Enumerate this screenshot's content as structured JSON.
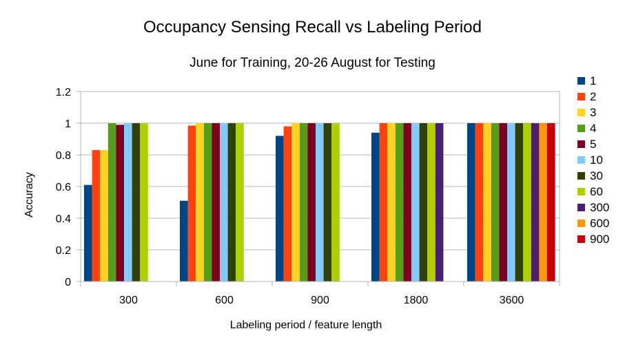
{
  "chart_data": {
    "type": "bar",
    "title": "Occupancy Sensing Recall vs Labeling Period",
    "subtitle": "June for Training, 20-26 August for Testing",
    "xlabel": "Labeling period / feature length",
    "ylabel": "Accuracy",
    "ylim": [
      0,
      1.2
    ],
    "yticks": [
      "0",
      "0.2",
      "0.4",
      "0.6",
      "0.8",
      "1",
      "1.2"
    ],
    "grid": true,
    "legend_position": "right",
    "categories": [
      "300",
      "600",
      "900",
      "1800",
      "3600"
    ],
    "series": [
      {
        "name": "1",
        "color": "#004586",
        "values": [
          0.61,
          0.51,
          0.92,
          0.94,
          1
        ]
      },
      {
        "name": "2",
        "color": "#ff420e",
        "values": [
          0.83,
          0.985,
          0.98,
          1,
          1
        ]
      },
      {
        "name": "3",
        "color": "#ffd320",
        "values": [
          0.83,
          1,
          1,
          1,
          1
        ]
      },
      {
        "name": "4",
        "color": "#579d1c",
        "values": [
          1,
          1,
          1,
          1,
          1
        ]
      },
      {
        "name": "5",
        "color": "#7e0021",
        "values": [
          0.99,
          1,
          1,
          1,
          1
        ]
      },
      {
        "name": "10",
        "color": "#83caff",
        "values": [
          1,
          1,
          1,
          1,
          1
        ]
      },
      {
        "name": "30",
        "color": "#314004",
        "values": [
          1,
          1,
          1,
          1,
          1
        ]
      },
      {
        "name": "60",
        "color": "#aecf00",
        "values": [
          1,
          1,
          1,
          1,
          1
        ]
      },
      {
        "name": "300",
        "color": "#4b1f6f",
        "values": [
          null,
          null,
          null,
          1,
          1
        ]
      },
      {
        "name": "600",
        "color": "#ff950e",
        "values": [
          null,
          null,
          null,
          null,
          1
        ]
      },
      {
        "name": "900",
        "color": "#c5000b",
        "values": [
          null,
          null,
          null,
          null,
          1
        ]
      }
    ]
  }
}
